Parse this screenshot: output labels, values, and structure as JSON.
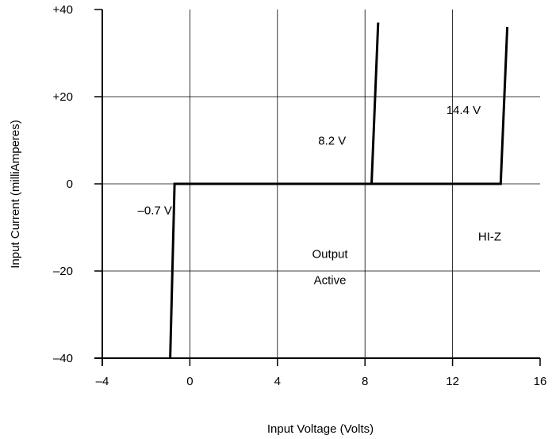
{
  "chart_data": {
    "type": "line",
    "title": "",
    "xlabel": "Input Voltage (Volts)",
    "ylabel": "Input Current (milliAmperes)",
    "xlim": [
      -4,
      16
    ],
    "ylim": [
      -40,
      40
    ],
    "x_ticks": [
      {
        "value": -4,
        "label": "–4"
      },
      {
        "value": 0,
        "label": "0"
      },
      {
        "value": 4,
        "label": "4"
      },
      {
        "value": 8,
        "label": "8"
      },
      {
        "value": 12,
        "label": "12"
      },
      {
        "value": 16,
        "label": "16"
      }
    ],
    "y_ticks": [
      {
        "value": 40,
        "label": "+40"
      },
      {
        "value": 20,
        "label": "+20"
      },
      {
        "value": 0,
        "label": "0"
      },
      {
        "value": -20,
        "label": "–20"
      },
      {
        "value": -40,
        "label": "–40"
      }
    ],
    "grid": true,
    "series": [
      {
        "points": [
          {
            "x": -0.9,
            "y": -40
          },
          {
            "x": -0.7,
            "y": 0
          },
          {
            "x": 8.3,
            "y": 0
          },
          {
            "x": 8.6,
            "y": 37
          }
        ]
      },
      {
        "points": [
          {
            "x": 8.3,
            "y": 0
          },
          {
            "x": 14.2,
            "y": 0
          },
          {
            "x": 14.5,
            "y": 36
          }
        ]
      }
    ],
    "annotations": [
      {
        "text": "14.4 V",
        "x": 12.5,
        "y": 16
      },
      {
        "text": "8.2 V",
        "x": 6.5,
        "y": 9
      },
      {
        "text": "–0.7 V",
        "x": -1.6,
        "y": -7
      },
      {
        "text": "Output",
        "x": 6.4,
        "y": -17
      },
      {
        "text": "Active",
        "x": 6.4,
        "y": -23
      },
      {
        "text": "HI-Z",
        "x": 13.7,
        "y": -13
      }
    ],
    "colors": {
      "line": "#000000",
      "grid": "#000000",
      "background": "#ffffff"
    }
  }
}
